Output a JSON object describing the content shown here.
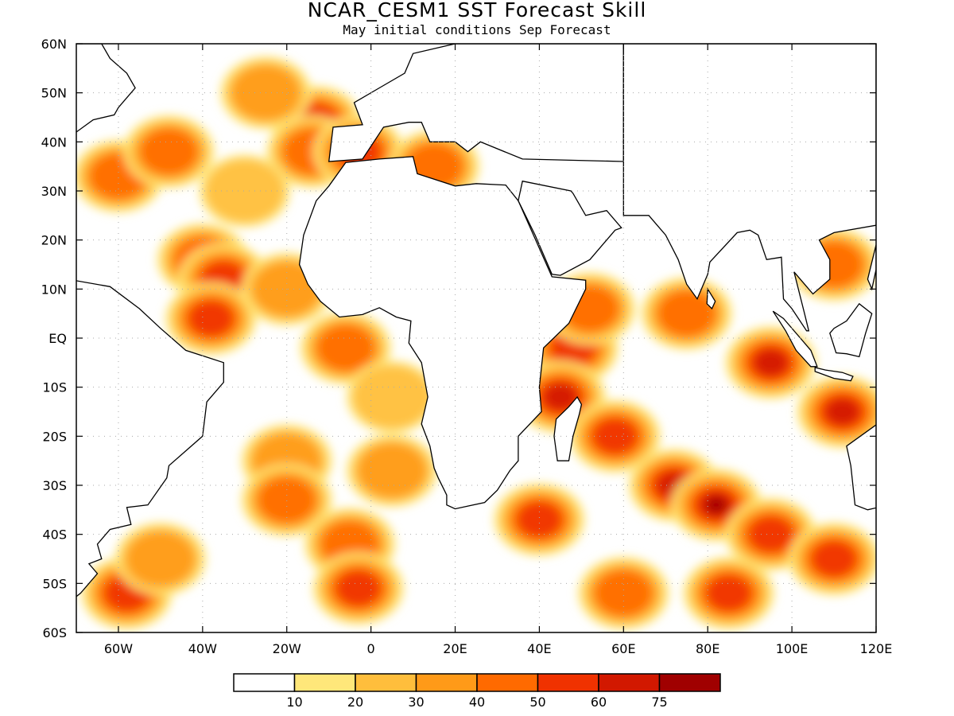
{
  "title": "NCAR_CESM1 SST Forecast Skill",
  "subtitle": "May initial conditions  Sep Forecast",
  "map": {
    "projection": "equirectangular",
    "lon_range": [
      -70,
      120
    ],
    "lat_range": [
      -60,
      60
    ],
    "lat_ticks": [
      "60N",
      "50N",
      "40N",
      "30N",
      "20N",
      "10N",
      "EQ",
      "10S",
      "20S",
      "30S",
      "40S",
      "50S",
      "60S"
    ],
    "lon_ticks": [
      "60W",
      "40W",
      "20W",
      "0",
      "20E",
      "40E",
      "60E",
      "80E",
      "100E",
      "120E"
    ],
    "grid": true,
    "coastlines": true
  },
  "colorbar": {
    "colors": [
      "#ffffff",
      "#ffe77a",
      "#ffbe3c",
      "#ff9a18",
      "#ff6a00",
      "#f03200",
      "#d21800",
      "#a00000"
    ],
    "labels": [
      "10",
      "20",
      "30",
      "40",
      "50",
      "60",
      "75"
    ]
  },
  "chart_data": {
    "type": "heatmap",
    "title": "NCAR_CESM1 SST Forecast Skill",
    "subtitle": "May initial conditions  Sep Forecast",
    "xlabel": "",
    "ylabel": "",
    "xlim": [
      -70,
      120
    ],
    "ylim": [
      -60,
      60
    ],
    "color_levels": [
      10,
      20,
      30,
      40,
      50,
      60,
      75
    ],
    "regions": [
      {
        "lon": -60,
        "lat": 33,
        "value": 45
      },
      {
        "lon": -48,
        "lat": 38,
        "value": 45
      },
      {
        "lon": -40,
        "lat": 16,
        "value": 40
      },
      {
        "lon": -35,
        "lat": 12,
        "value": 50
      },
      {
        "lon": -38,
        "lat": 4,
        "value": 55
      },
      {
        "lon": -20,
        "lat": 10,
        "value": 30
      },
      {
        "lon": -13,
        "lat": 44,
        "value": 55
      },
      {
        "lon": -14,
        "lat": 38,
        "value": 45
      },
      {
        "lon": -30,
        "lat": 30,
        "value": 25
      },
      {
        "lon": -25,
        "lat": 50,
        "value": 30
      },
      {
        "lon": -3,
        "lat": 38,
        "value": 55
      },
      {
        "lon": 15,
        "lat": 35,
        "value": 40
      },
      {
        "lon": -6,
        "lat": -2,
        "value": 45
      },
      {
        "lon": 5,
        "lat": -12,
        "value": 25
      },
      {
        "lon": -20,
        "lat": -25,
        "value": 30
      },
      {
        "lon": -20,
        "lat": -33,
        "value": 45
      },
      {
        "lon": 5,
        "lat": -27,
        "value": 30
      },
      {
        "lon": -5,
        "lat": -42,
        "value": 40
      },
      {
        "lon": -3,
        "lat": -51,
        "value": 50
      },
      {
        "lon": -58,
        "lat": -52,
        "value": 55
      },
      {
        "lon": -50,
        "lat": -45,
        "value": 30
      },
      {
        "lon": 48,
        "lat": -2,
        "value": 55
      },
      {
        "lon": 52,
        "lat": 6,
        "value": 45
      },
      {
        "lon": 45,
        "lat": -12,
        "value": 60
      },
      {
        "lon": 58,
        "lat": -20,
        "value": 55
      },
      {
        "lon": 72,
        "lat": -30,
        "value": 60
      },
      {
        "lon": 82,
        "lat": -34,
        "value": 75
      },
      {
        "lon": 95,
        "lat": -40,
        "value": 55
      },
      {
        "lon": 110,
        "lat": -45,
        "value": 50
      },
      {
        "lon": 95,
        "lat": -5,
        "value": 60
      },
      {
        "lon": 112,
        "lat": -15,
        "value": 65
      },
      {
        "lon": 75,
        "lat": 5,
        "value": 40
      },
      {
        "lon": 60,
        "lat": -52,
        "value": 40
      },
      {
        "lon": 85,
        "lat": -52,
        "value": 50
      },
      {
        "lon": 110,
        "lat": 15,
        "value": 45
      },
      {
        "lon": 40,
        "lat": -37,
        "value": 50
      }
    ]
  }
}
